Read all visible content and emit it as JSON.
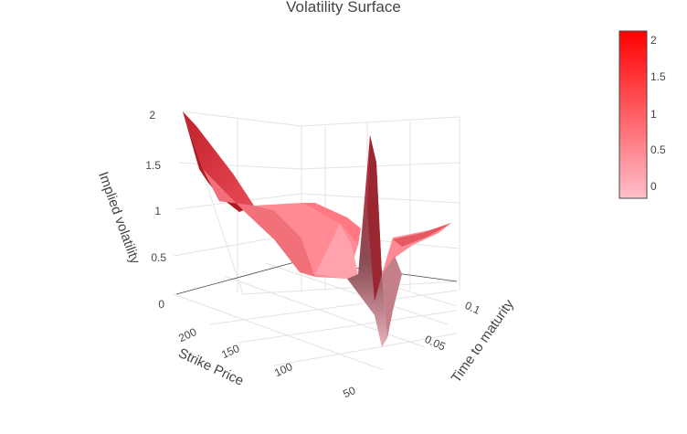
{
  "chart_data": {
    "type": "surface",
    "title": "Volatility Surface",
    "xlabel": "Strike Price",
    "ylabel": "Time to maturity",
    "zlabel": "Implied volatility",
    "x_ticks": [
      "200",
      "150",
      "100",
      "50"
    ],
    "y_ticks": [
      "0.1",
      "0.05"
    ],
    "z_ticks": [
      "0",
      "0.5",
      "1",
      "1.5",
      "2"
    ],
    "colorbar": {
      "ticks": [
        "2",
        "1.5",
        "1",
        "0.5",
        "0"
      ],
      "range": [
        -0.15,
        2.1
      ],
      "colors": {
        "low": "#ffc0cb",
        "high": "#ff0000"
      }
    },
    "zlim": [
      0,
      2
    ],
    "grid": true
  }
}
